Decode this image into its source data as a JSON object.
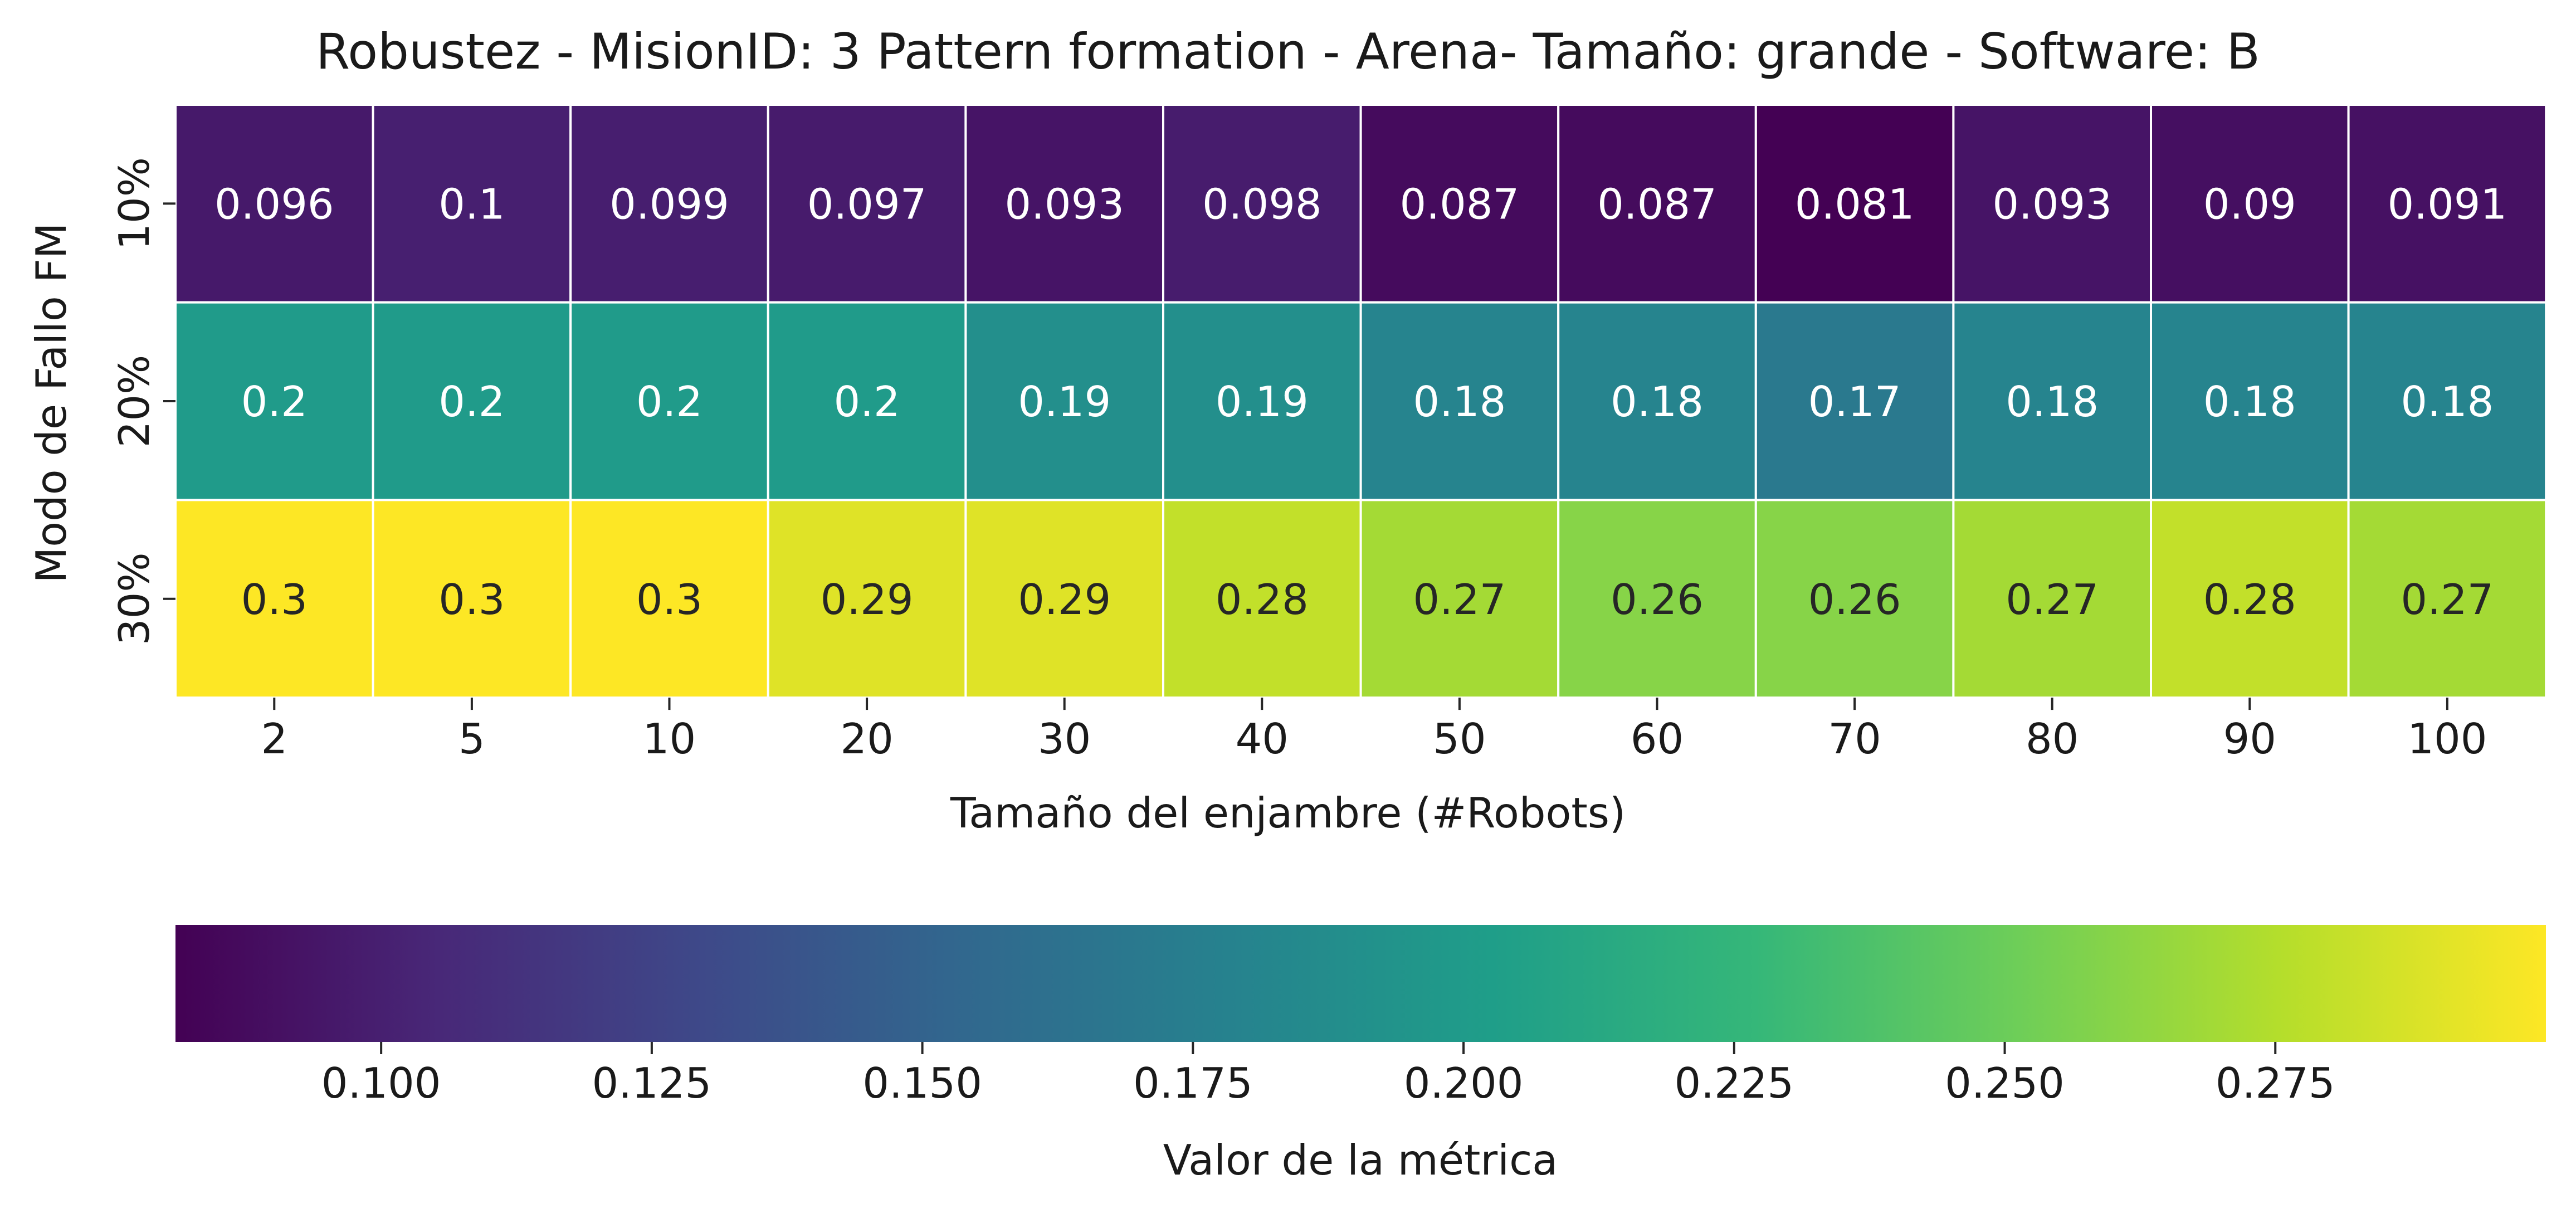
{
  "chart_data": {
    "type": "heatmap",
    "title": "Robustez - MisionID: 3 Pattern formation - Arena- Tamaño: grande - Software: B",
    "xlabel": "Tamaño del enjambre (#Robots)",
    "ylabel": "Modo de Fallo FM",
    "x_categories": [
      "2",
      "5",
      "10",
      "20",
      "30",
      "40",
      "50",
      "60",
      "70",
      "80",
      "90",
      "100"
    ],
    "y_categories": [
      "10%",
      "20%",
      "30%"
    ],
    "values": [
      [
        0.096,
        0.1,
        0.099,
        0.097,
        0.093,
        0.098,
        0.087,
        0.087,
        0.081,
        0.093,
        0.09,
        0.091
      ],
      [
        0.2,
        0.2,
        0.2,
        0.2,
        0.19,
        0.19,
        0.18,
        0.18,
        0.17,
        0.18,
        0.18,
        0.18
      ],
      [
        0.3,
        0.3,
        0.3,
        0.29,
        0.29,
        0.28,
        0.27,
        0.26,
        0.26,
        0.27,
        0.28,
        0.27
      ]
    ],
    "cell_labels": [
      [
        "0.096",
        "0.1",
        "0.099",
        "0.097",
        "0.093",
        "0.098",
        "0.087",
        "0.087",
        "0.081",
        "0.093",
        "0.09",
        "0.091"
      ],
      [
        "0.2",
        "0.2",
        "0.2",
        "0.2",
        "0.19",
        "0.19",
        "0.18",
        "0.18",
        "0.17",
        "0.18",
        "0.18",
        "0.18"
      ],
      [
        "0.3",
        "0.3",
        "0.3",
        "0.29",
        "0.29",
        "0.28",
        "0.27",
        "0.26",
        "0.26",
        "0.27",
        "0.28",
        "0.27"
      ]
    ],
    "colormap": "viridis",
    "color_range": [
      0.081,
      0.3
    ],
    "colorbar": {
      "label": "Valor de la métrica",
      "orientation": "horizontal",
      "placement": "bottom",
      "ticks": [
        0.1,
        0.125,
        0.15,
        0.175,
        0.2,
        0.225,
        0.25,
        0.275
      ],
      "tick_labels": [
        "0.100",
        "0.125",
        "0.150",
        "0.175",
        "0.200",
        "0.225",
        "0.250",
        "0.275"
      ]
    },
    "grid": false
  }
}
